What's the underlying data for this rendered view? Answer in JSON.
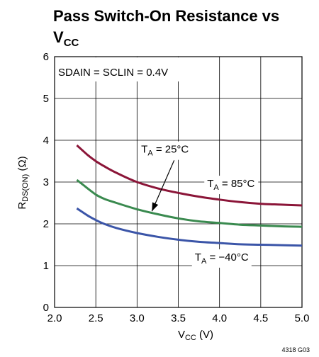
{
  "chart_data": {
    "type": "line",
    "title_line1": "Pass Switch-On Resistance vs",
    "title_line2_main": "V",
    "title_line2_sub": "CC",
    "xlabel_main": "V",
    "xlabel_sub": "CC",
    "xlabel_unit": " (V)",
    "ylabel_main": "R",
    "ylabel_sub": "DS(ON)",
    "ylabel_unit": " (Ω)",
    "xlim": [
      2.0,
      5.0
    ],
    "ylim": [
      0,
      6
    ],
    "x_ticks": [
      "2.0",
      "2.5",
      "3.0",
      "3.5",
      "4.0",
      "4.5",
      "5.0"
    ],
    "x_tick_values": [
      2.0,
      2.5,
      3.0,
      3.5,
      4.0,
      4.5,
      5.0
    ],
    "y_ticks": [
      "0",
      "1",
      "2",
      "3",
      "4",
      "5",
      "6"
    ],
    "y_tick_values": [
      0,
      1,
      2,
      3,
      4,
      5,
      6
    ],
    "grid": true,
    "condition_text": "SDAIN = SCLIN = 0.4V",
    "figure_id": "4318 G03",
    "series": [
      {
        "name": "85°C",
        "color": "#8b1538",
        "x": [
          2.27,
          2.4,
          2.5,
          2.6,
          2.75,
          3.0,
          3.25,
          3.5,
          3.75,
          4.0,
          4.25,
          4.5,
          4.75,
          5.0
        ],
        "y": [
          3.88,
          3.65,
          3.5,
          3.38,
          3.22,
          3.0,
          2.85,
          2.74,
          2.65,
          2.58,
          2.52,
          2.48,
          2.46,
          2.44
        ]
      },
      {
        "name": "25°C",
        "color": "#3a8a4f",
        "x": [
          2.27,
          2.4,
          2.5,
          2.6,
          2.75,
          3.0,
          3.25,
          3.5,
          3.75,
          4.0,
          4.25,
          4.5,
          4.75,
          5.0
        ],
        "y": [
          3.05,
          2.85,
          2.7,
          2.6,
          2.5,
          2.35,
          2.23,
          2.13,
          2.06,
          2.02,
          1.98,
          1.96,
          1.94,
          1.93
        ]
      },
      {
        "name": "−40°C",
        "color": "#3b55a8",
        "x": [
          2.27,
          2.4,
          2.5,
          2.6,
          2.75,
          3.0,
          3.25,
          3.5,
          3.75,
          4.0,
          4.25,
          4.5,
          4.75,
          5.0
        ],
        "y": [
          2.37,
          2.2,
          2.09,
          2.0,
          1.9,
          1.78,
          1.69,
          1.62,
          1.57,
          1.54,
          1.51,
          1.5,
          1.49,
          1.48
        ]
      }
    ],
    "annotations": [
      {
        "label_main": "T",
        "label_sub": "A",
        "label_rest": " = 25°C",
        "x": 3.05,
        "y": 3.7
      },
      {
        "label_main": "T",
        "label_sub": "A",
        "label_rest": " = 85°C",
        "x": 3.85,
        "y": 2.88
      },
      {
        "label_main": "T",
        "label_sub": "A",
        "label_rest": " = −40°C",
        "x": 3.7,
        "y": 1.12
      }
    ],
    "arrow": {
      "from": [
        3.45,
        3.52
      ],
      "to": [
        3.18,
        2.3
      ]
    }
  }
}
